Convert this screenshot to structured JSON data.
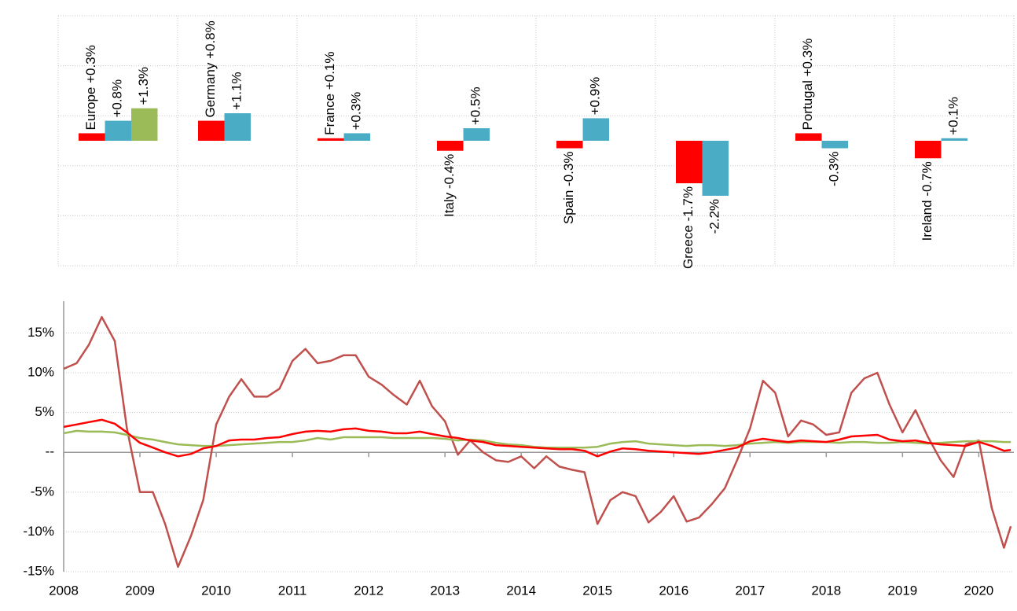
{
  "chart_data": [
    {
      "type": "bar",
      "ylim": [
        -5,
        5
      ],
      "yticks": [
        -5,
        -3,
        -1,
        1,
        3,
        5
      ],
      "grid": true,
      "series": [
        {
          "color": "#ff0000",
          "values": [
            0.3,
            0.8,
            0.1,
            -0.4,
            -0.3,
            -1.7,
            0.3,
            -0.7
          ],
          "value_labels": [
            "Europe +0.3%",
            "Germany +0.8%",
            "France +0.1%",
            "Italy -0.4%",
            "Spain -0.3%",
            "Greece -1.7%",
            "Portugal +0.3%",
            "Ireland -0.7%"
          ]
        },
        {
          "color": "#4bacc6",
          "values": [
            0.8,
            1.1,
            0.3,
            0.5,
            0.9,
            -2.2,
            -0.3,
            0.1
          ],
          "value_labels": [
            "+0.8%",
            "+1.1%",
            "+0.3%",
            "+0.5%",
            "+0.9%",
            "-2.2%",
            "-0.3%",
            "+0.1%"
          ]
        },
        {
          "color": "#9bbb59",
          "values": [
            1.3,
            null,
            null,
            null,
            null,
            null,
            null,
            null
          ],
          "value_labels": [
            "+1.3%",
            null,
            null,
            null,
            null,
            null,
            null,
            null
          ]
        }
      ]
    },
    {
      "type": "line",
      "xlim": [
        2008,
        2020.46
      ],
      "xticks": [
        2008,
        2009,
        2010,
        2011,
        2012,
        2013,
        2014,
        2015,
        2016,
        2017,
        2018,
        2019,
        2020
      ],
      "ylim": [
        -15,
        19
      ],
      "yticks": [
        {
          "value": 15,
          "label": "15%"
        },
        {
          "value": 10,
          "label": "10%"
        },
        {
          "value": 5,
          "label": "5%"
        },
        {
          "value": 0,
          "label": "--"
        },
        {
          "value": -5,
          "label": "-5%"
        },
        {
          "value": -10,
          "label": "-10%"
        },
        {
          "value": -15,
          "label": "-15%"
        }
      ],
      "grid": true,
      "x": [
        2008,
        2008.17,
        2008.33,
        2008.5,
        2008.67,
        2008.83,
        2009,
        2009.17,
        2009.33,
        2009.5,
        2009.67,
        2009.83,
        2010,
        2010.17,
        2010.33,
        2010.5,
        2010.67,
        2010.83,
        2011,
        2011.17,
        2011.33,
        2011.5,
        2011.67,
        2011.83,
        2012,
        2012.17,
        2012.33,
        2012.5,
        2012.67,
        2012.83,
        2013,
        2013.17,
        2013.33,
        2013.5,
        2013.67,
        2013.83,
        2014,
        2014.17,
        2014.33,
        2014.5,
        2014.67,
        2014.83,
        2015,
        2015.17,
        2015.33,
        2015.5,
        2015.67,
        2015.83,
        2016,
        2016.17,
        2016.33,
        2016.5,
        2016.67,
        2016.83,
        2017,
        2017.17,
        2017.33,
        2017.5,
        2017.67,
        2017.83,
        2018,
        2018.17,
        2018.33,
        2018.5,
        2018.67,
        2018.83,
        2019,
        2019.17,
        2019.33,
        2019.5,
        2019.67,
        2019.83,
        2020,
        2020.17,
        2020.33,
        2020.42
      ],
      "series": [
        {
          "color": "#c0504d",
          "values": [
            10.5,
            11.2,
            13.5,
            17,
            14,
            3,
            -5,
            -5,
            -9,
            -14.4,
            -10.5,
            -6,
            3.5,
            7,
            9.2,
            7,
            7,
            8,
            11.5,
            13,
            11.2,
            11.5,
            12.2,
            12.2,
            9.5,
            8.5,
            7.2,
            6,
            9,
            5.8,
            3.9,
            -0.3,
            1.5,
            0,
            -1,
            -1.2,
            -0.5,
            -2,
            -0.5,
            -1.8,
            -2.2,
            -2.5,
            -9,
            -6,
            -5,
            -5.5,
            -8.8,
            -7.5,
            -5.5,
            -8.7,
            -8.2,
            -6.5,
            -4.5,
            -1,
            3,
            9,
            7.5,
            2,
            4,
            3.5,
            2.2,
            2.5,
            7.5,
            9.3,
            10,
            6,
            2.5,
            5.3,
            2,
            -1,
            -3.1,
            1,
            1.5,
            -7,
            -12,
            -9.3
          ]
        },
        {
          "color": "#9bbb59",
          "values": [
            2.4,
            2.7,
            2.6,
            2.6,
            2.5,
            2.2,
            1.8,
            1.6,
            1.3,
            1.0,
            0.9,
            0.8,
            0.8,
            0.9,
            1.0,
            1.1,
            1.2,
            1.3,
            1.3,
            1.5,
            1.8,
            1.6,
            1.9,
            1.9,
            1.9,
            1.9,
            1.8,
            1.8,
            1.8,
            1.8,
            1.7,
            1.5,
            1.6,
            1.5,
            1.2,
            1.0,
            0.9,
            0.7,
            0.6,
            0.6,
            0.6,
            0.6,
            0.7,
            1.1,
            1.3,
            1.4,
            1.1,
            1.0,
            0.9,
            0.8,
            0.9,
            0.9,
            0.8,
            0.9,
            1.1,
            1.2,
            1.3,
            1.2,
            1.3,
            1.3,
            1.3,
            1.2,
            1.3,
            1.3,
            1.2,
            1.2,
            1.3,
            1.2,
            1.1,
            1.2,
            1.3,
            1.4,
            1.4,
            1.4,
            1.3,
            1.3
          ]
        },
        {
          "color": "#ff0000",
          "values": [
            3.2,
            3.5,
            3.8,
            4.1,
            3.6,
            2.5,
            1.2,
            0.6,
            0,
            -0.5,
            -0.2,
            0.5,
            0.8,
            1.5,
            1.6,
            1.6,
            1.8,
            1.9,
            2.3,
            2.6,
            2.7,
            2.6,
            2.9,
            3,
            2.7,
            2.6,
            2.4,
            2.4,
            2.6,
            2.3,
            2.0,
            1.8,
            1.5,
            1.3,
            0.9,
            0.8,
            0.7,
            0.6,
            0.5,
            0.4,
            0.4,
            0.2,
            -0.5,
            0.1,
            0.5,
            0.4,
            0.2,
            0.1,
            0,
            -0.1,
            -0.2,
            0,
            0.3,
            0.6,
            1.4,
            1.7,
            1.5,
            1.3,
            1.5,
            1.4,
            1.3,
            1.6,
            2.0,
            2.1,
            2.2,
            1.6,
            1.4,
            1.5,
            1.2,
            1.0,
            0.9,
            0.8,
            1.3,
            0.8,
            0.2,
            0.3
          ]
        }
      ]
    }
  ]
}
